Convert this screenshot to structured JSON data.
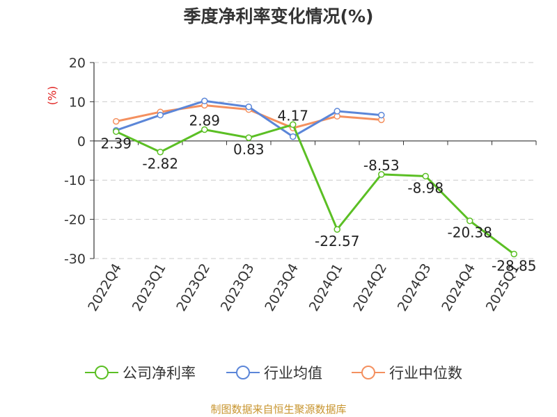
{
  "title": "季度净利率变化情况(%)",
  "unit_label": "(%)",
  "source": "制图数据来自恒生聚源数据库",
  "colors": {
    "company": "#5bbf24",
    "industry_avg": "#5b86d8",
    "industry_median": "#f4905f",
    "grid": "#cccccc",
    "axis": "#333333",
    "unit": "#e0201e"
  },
  "chart_data": {
    "type": "line",
    "title": "季度净利率变化情况(%)",
    "ylabel": "(%)",
    "ylim": [
      -30,
      20
    ],
    "yticks": [
      20,
      10,
      0,
      -10,
      -20,
      -30
    ],
    "categories": [
      "2022Q4",
      "2023Q1",
      "2023Q2",
      "2023Q3",
      "2023Q4",
      "2024Q1",
      "2024Q2",
      "2024Q3",
      "2024Q4",
      "2025Q1"
    ],
    "grid": true,
    "legend_position": "bottom",
    "series": [
      {
        "name": "公司净利率",
        "key": "company",
        "values": [
          2.39,
          -2.82,
          2.89,
          0.83,
          4.17,
          -22.57,
          -8.53,
          -8.98,
          -20.38,
          -28.85
        ],
        "labels": [
          "2.39",
          "-2.82",
          "2.89",
          "0.83",
          "4.17",
          "-22.57",
          "-8.53",
          "-8.98",
          "-20.38",
          "-28.85"
        ]
      },
      {
        "name": "行业均值",
        "key": "industry_avg",
        "values": [
          2.7,
          6.6,
          10.2,
          8.7,
          1.1,
          7.6,
          6.6,
          null,
          null,
          null
        ]
      },
      {
        "name": "行业中位数",
        "key": "industry_median",
        "values": [
          5.0,
          7.4,
          9.1,
          8.0,
          3.3,
          6.3,
          5.4,
          null,
          null,
          null
        ]
      }
    ]
  }
}
